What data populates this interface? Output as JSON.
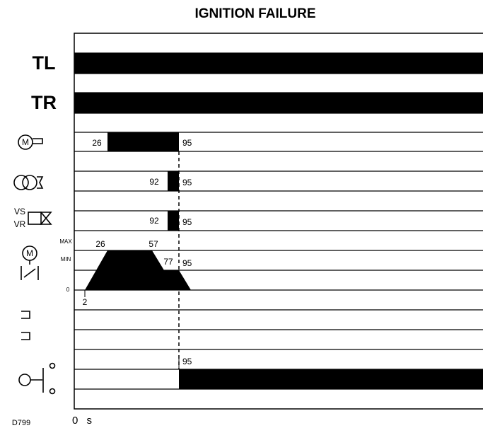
{
  "title": "IGNITION FAILURE",
  "rows": {
    "tl": "TL",
    "tr": "TR",
    "vs": "VS",
    "vr": "VR",
    "motor_m": "M",
    "damper_m": "M"
  },
  "damper_scale": {
    "max": "MAX",
    "min": "MIN",
    "zero": "0"
  },
  "times": {
    "motor_start": "26",
    "motor_end": "95",
    "ignition_start": "92",
    "ignition_end": "95",
    "valve_start": "92",
    "valve_end": "95",
    "damper_max_start": "26",
    "damper_max_end": "57",
    "damper_min": "77",
    "damper_end": "95",
    "damper_start": "2",
    "alarm_start": "95"
  },
  "footer": {
    "code": "D799",
    "origin": "0 s"
  }
}
